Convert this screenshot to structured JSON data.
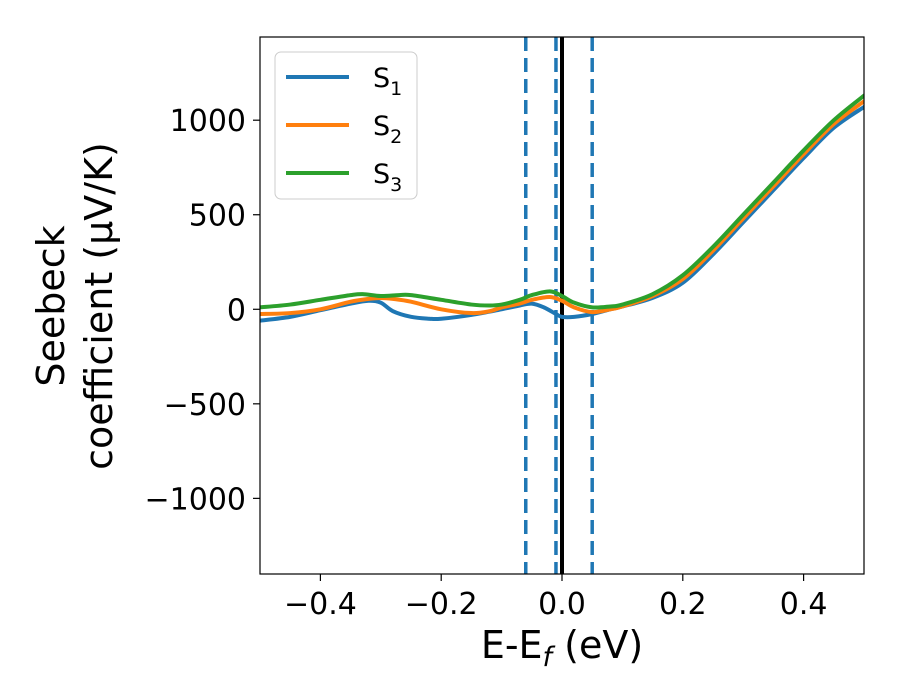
{
  "chart_data": {
    "type": "line",
    "title": "",
    "xlabel": {
      "base": "E-E",
      "sub": "f",
      "unit": " (eV)"
    },
    "ylabel": {
      "line1": "Seebeck",
      "line2": "coefficient  (μV/K)"
    },
    "xlim": [
      -0.5,
      0.5
    ],
    "ylim": [
      -1400,
      1440
    ],
    "xticks": [
      -0.4,
      -0.2,
      0.0,
      0.2,
      0.4
    ],
    "xtick_labels": [
      "−0.4",
      "−0.2",
      "0.0",
      "0.2",
      "0.4"
    ],
    "yticks": [
      -1000,
      -500,
      0,
      500,
      1000
    ],
    "ytick_labels": [
      "−1000",
      "−500",
      "0",
      "500",
      "1000"
    ],
    "grid": false,
    "legend": {
      "position": "top-left"
    },
    "series": [
      {
        "name": "S1",
        "label_base": "S",
        "label_sub": "1",
        "color": "#1f77b4",
        "x": [
          -0.5,
          -0.45,
          -0.4,
          -0.35,
          -0.32,
          -0.3,
          -0.28,
          -0.25,
          -0.22,
          -0.2,
          -0.15,
          -0.1,
          -0.07,
          -0.05,
          -0.03,
          -0.01,
          0.0,
          0.02,
          0.05,
          0.08,
          0.1,
          0.15,
          0.2,
          0.25,
          0.3,
          0.35,
          0.4,
          0.45,
          0.5
        ],
        "values": [
          -60,
          -40,
          -5,
          30,
          45,
          35,
          -10,
          -40,
          -50,
          -50,
          -30,
          0,
          20,
          30,
          10,
          -25,
          -40,
          -40,
          -25,
          0,
          15,
          60,
          140,
          290,
          460,
          630,
          800,
          960,
          1070
        ]
      },
      {
        "name": "S2",
        "label_base": "S",
        "label_sub": "2",
        "color": "#ff7f0e",
        "x": [
          -0.5,
          -0.45,
          -0.4,
          -0.35,
          -0.32,
          -0.3,
          -0.28,
          -0.25,
          -0.2,
          -0.15,
          -0.12,
          -0.1,
          -0.07,
          -0.05,
          -0.02,
          0.0,
          0.02,
          0.05,
          0.08,
          0.1,
          0.15,
          0.2,
          0.25,
          0.3,
          0.35,
          0.4,
          0.45,
          0.5
        ],
        "values": [
          -25,
          -20,
          0,
          40,
          55,
          60,
          55,
          40,
          0,
          -20,
          -10,
          10,
          30,
          50,
          65,
          45,
          10,
          -15,
          0,
          15,
          70,
          160,
          310,
          480,
          650,
          820,
          980,
          1100
        ]
      },
      {
        "name": "S3",
        "label_base": "S",
        "label_sub": "3",
        "color": "#2ca02c",
        "x": [
          -0.5,
          -0.45,
          -0.4,
          -0.35,
          -0.33,
          -0.3,
          -0.27,
          -0.25,
          -0.2,
          -0.15,
          -0.12,
          -0.1,
          -0.07,
          -0.05,
          -0.02,
          0.0,
          0.02,
          0.05,
          0.08,
          0.1,
          0.15,
          0.2,
          0.25,
          0.3,
          0.35,
          0.4,
          0.45,
          0.5
        ],
        "values": [
          10,
          25,
          50,
          75,
          80,
          70,
          75,
          75,
          50,
          25,
          20,
          25,
          50,
          75,
          95,
          70,
          35,
          10,
          15,
          25,
          80,
          180,
          330,
          500,
          670,
          840,
          1000,
          1130
        ]
      }
    ],
    "vlines": [
      {
        "x": -0.06,
        "style": "dashed",
        "color": "#1f77b4"
      },
      {
        "x": -0.01,
        "style": "dashed",
        "color": "#1f77b4"
      },
      {
        "x": 0.05,
        "style": "dashed",
        "color": "#1f77b4"
      },
      {
        "x": 0.0,
        "style": "solid",
        "color": "#000000"
      }
    ]
  }
}
